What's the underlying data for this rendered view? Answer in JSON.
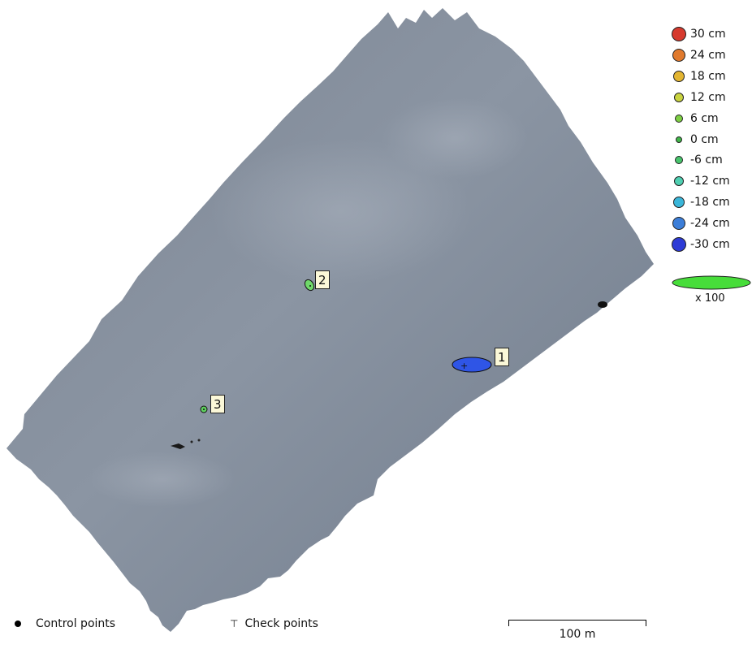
{
  "colors": {
    "terrain_dark": "#6b7686",
    "terrain_light": "#9aa3b0",
    "point1_fill": "#2f55e6",
    "point2_fill": "#6fd86a",
    "point3_fill": "#5fd060",
    "scale_ellipse_fill": "#47dd3a",
    "label_bg": "#fbf8d8"
  },
  "legend": {
    "items": [
      {
        "label": "30 cm",
        "color": "#d63a2e",
        "icon": "error-30-dot"
      },
      {
        "label": "24 cm",
        "color": "#e07a2e",
        "icon": "error-24-dot"
      },
      {
        "label": "18 cm",
        "color": "#e3b532",
        "icon": "error-18-dot"
      },
      {
        "label": "12 cm",
        "color": "#c9d33f",
        "icon": "error-12-dot"
      },
      {
        "label": "6 cm",
        "color": "#7dcf43",
        "icon": "error-6-dot"
      },
      {
        "label": "0 cm",
        "color": "#41b749",
        "icon": "error-0-dot"
      },
      {
        "label": "-6 cm",
        "color": "#48c46c",
        "icon": "error-neg6-dot"
      },
      {
        "label": "-12 cm",
        "color": "#4fcfb1",
        "icon": "error-neg12-dot"
      },
      {
        "label": "-18 cm",
        "color": "#3ab6d9",
        "icon": "error-neg18-dot"
      },
      {
        "label": "-24 cm",
        "color": "#3c7ed8",
        "icon": "error-neg24-dot"
      },
      {
        "label": "-30 cm",
        "color": "#2d3bd6",
        "icon": "error-neg30-dot"
      }
    ],
    "scale_label": "x 100"
  },
  "points": [
    {
      "label": "1"
    },
    {
      "label": "2"
    },
    {
      "label": "3"
    }
  ],
  "bottom": {
    "control_points": "Control points",
    "check_points": "Check points",
    "check_glyph": "⊤",
    "scale_text": "100 m"
  }
}
